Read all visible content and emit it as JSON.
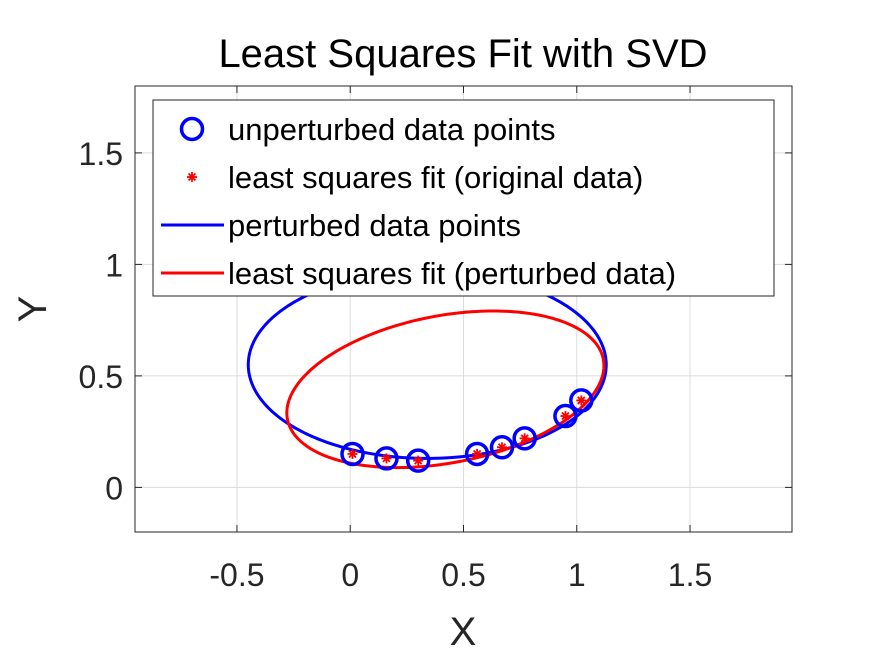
{
  "chart_data": {
    "type": "scatter",
    "title": "Least Squares Fit with SVD",
    "xlabel": "X",
    "ylabel": "Y",
    "xlim": [
      -0.95,
      1.95
    ],
    "ylim": [
      -0.2,
      1.8
    ],
    "xticks": [
      -0.5,
      0,
      0.5,
      1,
      1.5
    ],
    "xtick_labels": [
      "-0.5",
      "0",
      "0.5",
      "1",
      "1.5"
    ],
    "yticks": [
      0,
      0.5,
      1,
      1.5
    ],
    "ytick_labels": [
      "0",
      "0.5",
      "1",
      "1.5"
    ],
    "grid": true,
    "legend_position": "top",
    "series": [
      {
        "name": "unperturbed data points",
        "kind": "markers",
        "marker": "circle",
        "color": "#0000ff",
        "points": [
          [
            0.01,
            0.15
          ],
          [
            0.16,
            0.13
          ],
          [
            0.3,
            0.12
          ],
          [
            0.56,
            0.15
          ],
          [
            0.67,
            0.18
          ],
          [
            0.77,
            0.22
          ],
          [
            0.95,
            0.32
          ],
          [
            1.02,
            0.39
          ]
        ]
      },
      {
        "name": "least squares fit (original data)",
        "kind": "markers",
        "marker": "asterisk",
        "color": "#ff0000",
        "points": [
          [
            0.01,
            0.15
          ],
          [
            0.16,
            0.13
          ],
          [
            0.3,
            0.12
          ],
          [
            0.56,
            0.15
          ],
          [
            0.67,
            0.18
          ],
          [
            0.77,
            0.22
          ],
          [
            0.95,
            0.32
          ],
          [
            1.02,
            0.39
          ]
        ]
      },
      {
        "name": "perturbed data points",
        "kind": "curve",
        "color": "#0000ff",
        "ellipse": {
          "cx": 0.34,
          "cy": 0.55,
          "a": 0.79,
          "b": 0.42,
          "tilt_deg": 0
        }
      },
      {
        "name": "least squares fit (perturbed data)",
        "kind": "curve",
        "color": "#ff0000",
        "ellipse": {
          "cx": 0.42,
          "cy": 0.44,
          "a": 0.71,
          "b": 0.33,
          "tilt_deg": 11
        }
      }
    ]
  }
}
